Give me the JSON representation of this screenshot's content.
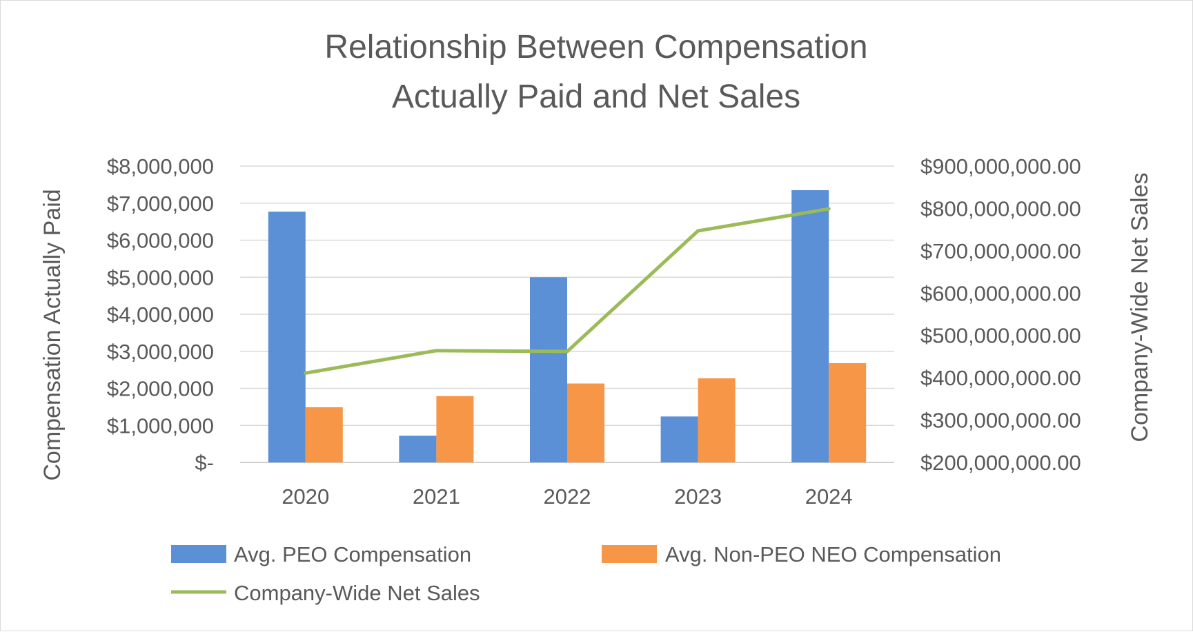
{
  "chart_data": {
    "type": "bar",
    "title": [
      "Relationship Between Compensation",
      "Actually Paid and Net Sales"
    ],
    "categories": [
      "2020",
      "2021",
      "2022",
      "2023",
      "2024"
    ],
    "series": [
      {
        "name": "Avg. PEO Compensation",
        "type": "bar",
        "axis": "left",
        "color": "#5b8fd6",
        "values": [
          6770000,
          720000,
          5000000,
          1240000,
          7350000
        ]
      },
      {
        "name": "Avg. Non-PEO NEO Compensation",
        "type": "bar",
        "axis": "left",
        "color": "#f79646",
        "values": [
          1490000,
          1790000,
          2130000,
          2270000,
          2680000
        ]
      },
      {
        "name": "Company-Wide Net Sales",
        "type": "line",
        "axis": "right",
        "color": "#9bbb59",
        "values": [
          411000000,
          464000000,
          462000000,
          747000000,
          799000000
        ]
      }
    ],
    "ylabel": "Compensation Actually Paid",
    "y2label": "Company-Wide Net Sales",
    "ylim": [
      0,
      8000000
    ],
    "y2lim": [
      200000000,
      900000000
    ],
    "yticks": [
      {
        "value": 0,
        "label": "$-"
      },
      {
        "value": 1000000,
        "label": "$1,000,000"
      },
      {
        "value": 2000000,
        "label": "$2,000,000"
      },
      {
        "value": 3000000,
        "label": "$3,000,000"
      },
      {
        "value": 4000000,
        "label": "$4,000,000"
      },
      {
        "value": 5000000,
        "label": "$5,000,000"
      },
      {
        "value": 6000000,
        "label": "$6,000,000"
      },
      {
        "value": 7000000,
        "label": "$7,000,000"
      },
      {
        "value": 8000000,
        "label": "$8,000,000"
      }
    ],
    "y2ticks": [
      {
        "value": 200000000,
        "label": "$200,000,000.00"
      },
      {
        "value": 300000000,
        "label": "$300,000,000.00"
      },
      {
        "value": 400000000,
        "label": "$400,000,000.00"
      },
      {
        "value": 500000000,
        "label": "$500,000,000.00"
      },
      {
        "value": 600000000,
        "label": "$600,000,000.00"
      },
      {
        "value": 700000000,
        "label": "$700,000,000.00"
      },
      {
        "value": 800000000,
        "label": "$800,000,000.00"
      },
      {
        "value": 900000000,
        "label": "$900,000,000.00"
      }
    ],
    "grid": true,
    "legend_position": "bottom"
  }
}
